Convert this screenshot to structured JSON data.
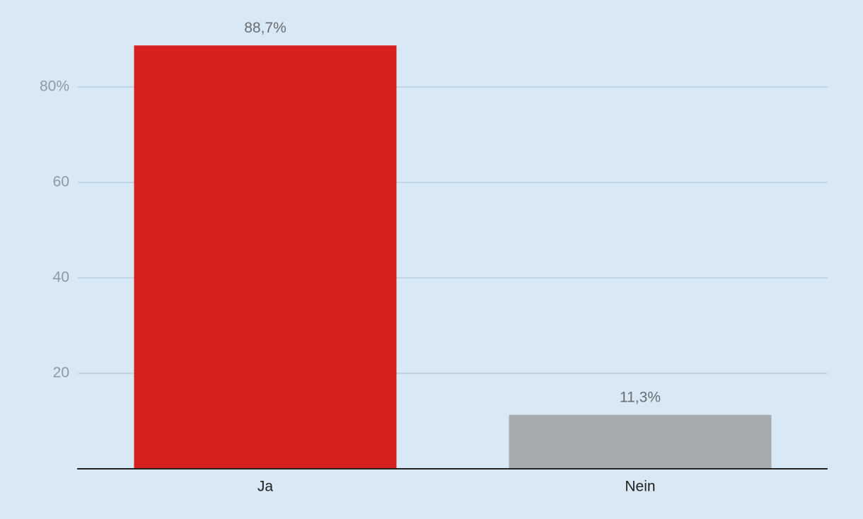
{
  "chart_data": {
    "type": "bar",
    "categories": [
      "Ja",
      "Nein"
    ],
    "values": [
      88.7,
      11.3
    ],
    "value_labels": [
      "88,7%",
      "11,3%"
    ],
    "colors": [
      "#d81f1f",
      "#a7abaf"
    ],
    "ylim": [
      0,
      90
    ],
    "yticks": [
      20,
      40,
      60,
      {
        "value": 80,
        "label": "80%"
      }
    ],
    "grid": true
  }
}
